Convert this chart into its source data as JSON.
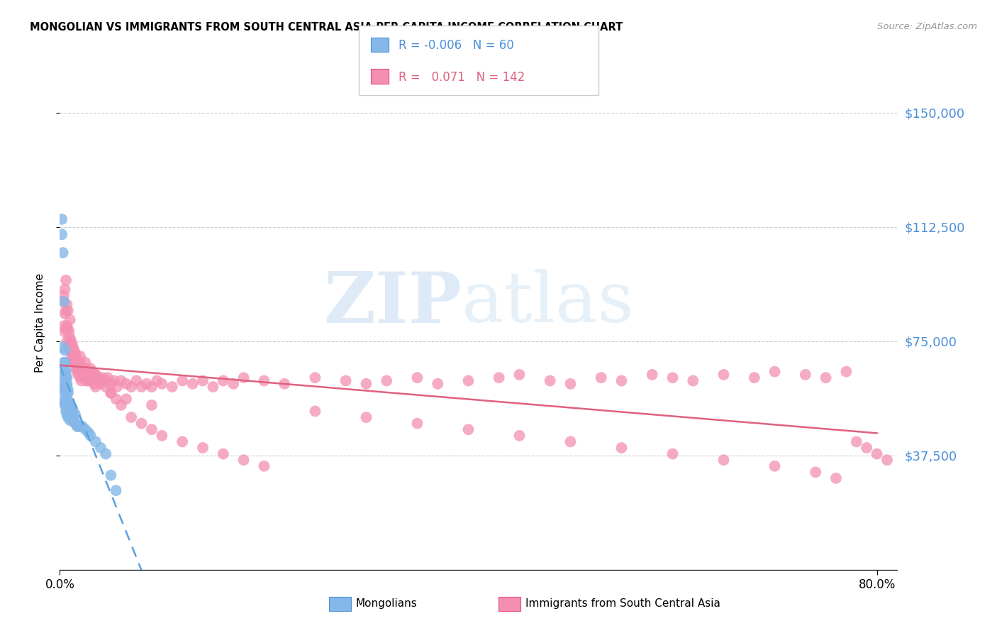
{
  "title": "MONGOLIAN VS IMMIGRANTS FROM SOUTH CENTRAL ASIA PER CAPITA INCOME CORRELATION CHART",
  "source": "Source: ZipAtlas.com",
  "ylabel": "Per Capita Income",
  "r_mongolian": -0.006,
  "n_mongolian": 60,
  "r_sca": 0.071,
  "n_sca": 142,
  "color_mongolian": "#85b8e8",
  "color_sca": "#f48fb1",
  "color_line_mongolian": "#5aa0e0",
  "color_line_sca": "#e06080",
  "color_ytick": "#4a90d9",
  "background_color": "#ffffff",
  "xlim": [
    0.0,
    0.82
  ],
  "ylim": [
    0,
    162000
  ],
  "ytick_vals": [
    37500,
    75000,
    112500,
    150000
  ],
  "ytick_labels": [
    "$37,500",
    "$75,000",
    "$112,500",
    "$150,000"
  ],
  "mong_x": [
    0.001,
    0.002,
    0.002,
    0.003,
    0.003,
    0.003,
    0.004,
    0.004,
    0.004,
    0.005,
    0.005,
    0.005,
    0.005,
    0.006,
    0.006,
    0.006,
    0.006,
    0.007,
    0.007,
    0.007,
    0.007,
    0.007,
    0.008,
    0.008,
    0.008,
    0.008,
    0.009,
    0.009,
    0.009,
    0.01,
    0.01,
    0.01,
    0.011,
    0.011,
    0.012,
    0.012,
    0.013,
    0.013,
    0.014,
    0.015,
    0.015,
    0.016,
    0.017,
    0.018,
    0.02,
    0.022,
    0.025,
    0.028,
    0.03,
    0.035,
    0.04,
    0.045,
    0.05,
    0.055,
    0.003,
    0.004,
    0.005,
    0.006,
    0.007,
    0.008
  ],
  "mong_y": [
    60000,
    110000,
    115000,
    58000,
    63000,
    104000,
    55000,
    60000,
    88000,
    54000,
    55000,
    68000,
    72000,
    52000,
    54000,
    58000,
    65000,
    51000,
    53000,
    56000,
    60000,
    63000,
    50000,
    52000,
    55000,
    58000,
    50000,
    52000,
    55000,
    49000,
    51000,
    54000,
    50000,
    53000,
    50000,
    53000,
    49000,
    52000,
    50000,
    48000,
    51000,
    48000,
    47000,
    47000,
    47000,
    47000,
    46000,
    45000,
    44000,
    42000,
    40000,
    38000,
    31000,
    26000,
    73000,
    68000,
    65000,
    63000,
    61000,
    59000
  ],
  "sca_x": [
    0.003,
    0.004,
    0.004,
    0.005,
    0.005,
    0.005,
    0.006,
    0.006,
    0.006,
    0.007,
    0.007,
    0.007,
    0.008,
    0.008,
    0.008,
    0.009,
    0.009,
    0.01,
    0.01,
    0.01,
    0.011,
    0.011,
    0.012,
    0.012,
    0.013,
    0.013,
    0.014,
    0.014,
    0.015,
    0.015,
    0.016,
    0.016,
    0.017,
    0.018,
    0.019,
    0.02,
    0.02,
    0.021,
    0.022,
    0.023,
    0.024,
    0.025,
    0.026,
    0.027,
    0.028,
    0.03,
    0.031,
    0.032,
    0.034,
    0.035,
    0.037,
    0.038,
    0.04,
    0.042,
    0.045,
    0.047,
    0.05,
    0.053,
    0.056,
    0.06,
    0.065,
    0.07,
    0.075,
    0.08,
    0.085,
    0.09,
    0.095,
    0.1,
    0.11,
    0.12,
    0.13,
    0.14,
    0.15,
    0.16,
    0.17,
    0.18,
    0.2,
    0.22,
    0.25,
    0.28,
    0.3,
    0.32,
    0.35,
    0.37,
    0.4,
    0.43,
    0.45,
    0.48,
    0.5,
    0.53,
    0.55,
    0.58,
    0.6,
    0.62,
    0.65,
    0.68,
    0.7,
    0.73,
    0.75,
    0.77,
    0.02,
    0.025,
    0.03,
    0.035,
    0.04,
    0.045,
    0.05,
    0.055,
    0.06,
    0.07,
    0.08,
    0.09,
    0.1,
    0.12,
    0.14,
    0.16,
    0.18,
    0.2,
    0.25,
    0.3,
    0.35,
    0.4,
    0.45,
    0.5,
    0.55,
    0.6,
    0.65,
    0.7,
    0.74,
    0.76,
    0.78,
    0.79,
    0.8,
    0.81,
    0.015,
    0.018,
    0.022,
    0.028,
    0.035,
    0.05,
    0.065,
    0.09
  ],
  "sca_y": [
    88000,
    80000,
    90000,
    78000,
    84000,
    92000,
    79000,
    85000,
    95000,
    75000,
    80000,
    87000,
    74000,
    79000,
    85000,
    73000,
    78000,
    72000,
    76000,
    82000,
    71000,
    75000,
    70000,
    74000,
    69000,
    73000,
    68000,
    72000,
    67000,
    71000,
    66000,
    70000,
    65000,
    64000,
    67000,
    63000,
    68000,
    62000,
    65000,
    64000,
    63000,
    66000,
    62000,
    64000,
    63000,
    62000,
    65000,
    63000,
    61000,
    64000,
    62000,
    63000,
    61000,
    63000,
    62000,
    63000,
    61000,
    62000,
    60000,
    62000,
    61000,
    60000,
    62000,
    60000,
    61000,
    60000,
    62000,
    61000,
    60000,
    62000,
    61000,
    62000,
    60000,
    62000,
    61000,
    63000,
    62000,
    61000,
    63000,
    62000,
    61000,
    62000,
    63000,
    61000,
    62000,
    63000,
    64000,
    62000,
    61000,
    63000,
    62000,
    64000,
    63000,
    62000,
    64000,
    63000,
    65000,
    64000,
    63000,
    65000,
    70000,
    68000,
    66000,
    64000,
    62000,
    60000,
    58000,
    56000,
    54000,
    50000,
    48000,
    46000,
    44000,
    42000,
    40000,
    38000,
    36000,
    34000,
    52000,
    50000,
    48000,
    46000,
    44000,
    42000,
    40000,
    38000,
    36000,
    34000,
    32000,
    30000,
    42000,
    40000,
    38000,
    36000,
    68000,
    66000,
    64000,
    62000,
    60000,
    58000,
    56000,
    54000
  ]
}
